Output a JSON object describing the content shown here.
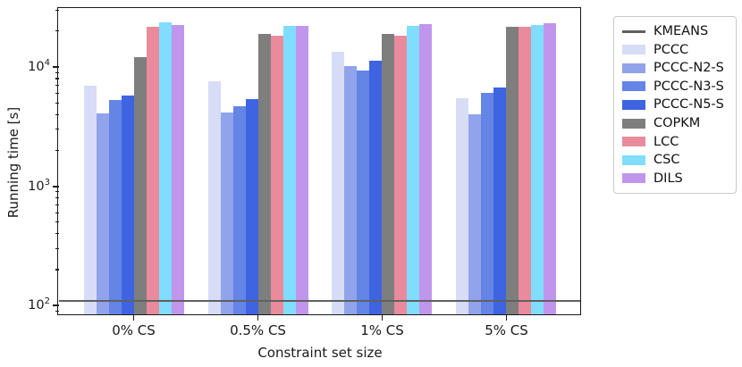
{
  "chart_data": {
    "type": "bar",
    "y_scale": "log",
    "title": "",
    "xlabel": "Constraint set size",
    "ylabel": "Running time [s]",
    "categories": [
      "0% CS",
      "0.5% CS",
      "1% CS",
      "5% CS"
    ],
    "ylim": [
      83,
      30700
    ],
    "y_ticks": [
      {
        "value": 100,
        "label": "10^2"
      },
      {
        "value": 1000,
        "label": "10^3"
      },
      {
        "value": 10000,
        "label": "10^4"
      }
    ],
    "grid": false,
    "legend_position": "outside-right",
    "reference_line": {
      "name": "KMEANS",
      "value": 110,
      "color": "#606060"
    },
    "series": [
      {
        "name": "PCCC",
        "color": "#d7ddf6",
        "values": [
          7000,
          7600,
          13500,
          5500
        ]
      },
      {
        "name": "PCCC-N2-S",
        "color": "#91a3ea",
        "values": [
          4100,
          4150,
          10100,
          4000
        ]
      },
      {
        "name": "PCCC-N3-S",
        "color": "#6484e6",
        "values": [
          5300,
          4700,
          9300,
          6100
        ]
      },
      {
        "name": "PCCC-N5-S",
        "color": "#3e64e2",
        "values": [
          5750,
          5400,
          11200,
          6700
        ]
      },
      {
        "name": "COPKM",
        "color": "#7e7e7e",
        "values": [
          12000,
          19000,
          18900,
          21700
        ]
      },
      {
        "name": "LCC",
        "color": "#e98b9c",
        "values": [
          21600,
          18300,
          18300,
          21700
        ]
      },
      {
        "name": "CSC",
        "color": "#80ddfe",
        "values": [
          23700,
          22100,
          22000,
          22600
        ]
      },
      {
        "name": "DILS",
        "color": "#c096ec",
        "values": [
          22600,
          22300,
          22800,
          23300
        ]
      }
    ],
    "legend": [
      "KMEANS",
      "PCCC",
      "PCCC-N2-S",
      "PCCC-N3-S",
      "PCCC-N5-S",
      "COPKM",
      "LCC",
      "CSC",
      "DILS"
    ]
  }
}
